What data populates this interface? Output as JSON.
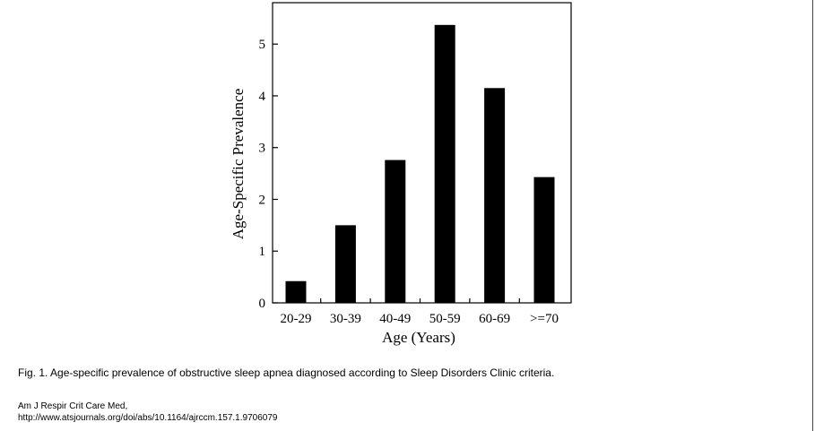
{
  "chart_data": {
    "type": "bar",
    "categories": [
      "20-29",
      "30-39",
      "40-49",
      "50-59",
      "60-69",
      ">=70"
    ],
    "values": [
      0.42,
      1.5,
      2.76,
      5.37,
      4.15,
      2.43
    ],
    "title": "",
    "xlabel": "Age (Years)",
    "ylabel": "Age-Specific Prevalence",
    "ylim": [
      0,
      5.8
    ],
    "yticks": [
      "0",
      "1",
      "2",
      "3",
      "4",
      "5"
    ],
    "grid": false,
    "legend": "none",
    "bar_color": "#000000"
  },
  "caption": "Fig. 1. Age-specific prevalence of obstructive sleep apnea diagnosed according to Sleep Disorders Clinic criteria.",
  "citation": {
    "line1": "Am J Respir Crit Care Med,",
    "line2": "http://www.atsjournals.org/doi/abs/10.1164/ajrccm.157.1.9706079"
  }
}
